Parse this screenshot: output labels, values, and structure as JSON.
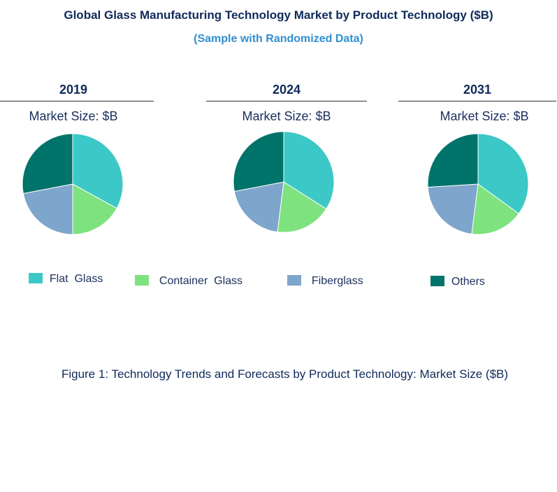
{
  "header": {
    "title": "Global Glass Manufacturing Technology Market by Product Technology ($B)",
    "subtitle": "(Sample with Randomized Data)"
  },
  "caption": "Figure 1: Technology Trends and Forecasts by Product Technology: Market Size ($B)",
  "colors": {
    "flat_glass": "#3cc8c6",
    "container_glass": "#7ee27f",
    "fiberglass": "#7ea5cb",
    "others": "#00736a"
  },
  "chart_data": [
    {
      "type": "pie",
      "year": "2019",
      "subtitle": "Market Size: $B",
      "categories": [
        "Flat Glass",
        "Container Glass",
        "Fiberglass",
        "Others"
      ],
      "values": [
        33,
        17,
        22,
        28
      ]
    },
    {
      "type": "pie",
      "year": "2024",
      "subtitle": "Market Size: $B",
      "categories": [
        "Flat Glass",
        "Container Glass",
        "Fiberglass",
        "Others"
      ],
      "values": [
        34,
        18,
        20,
        28
      ]
    },
    {
      "type": "pie",
      "year": "2031",
      "subtitle": "Market Size: $B",
      "categories": [
        "Flat Glass",
        "Container Glass",
        "Fiberglass",
        "Others"
      ],
      "values": [
        35,
        17,
        22,
        26
      ]
    }
  ],
  "legend": [
    {
      "label": "Flat  Glass",
      "color": "#3cc8c6"
    },
    {
      "label": "Container  Glass",
      "color": "#7ee27f"
    },
    {
      "label": "Fiberglass",
      "color": "#7ea5cb"
    },
    {
      "label": "Others",
      "color": "#00736a"
    }
  ]
}
